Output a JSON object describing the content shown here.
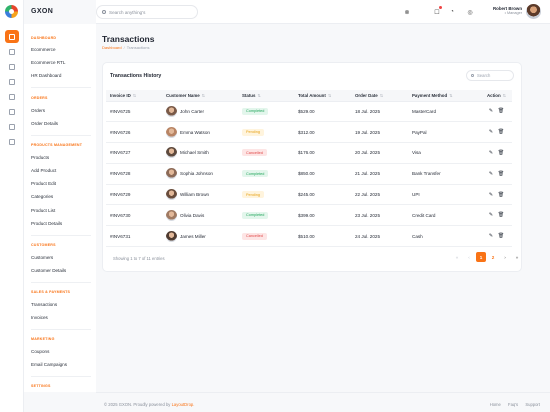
{
  "app": {
    "brand": "GXON"
  },
  "header": {
    "search_placeholder": "Search anything's",
    "user_name": "Robert Brown",
    "user_role": "Manager"
  },
  "sidebar": {
    "sections": [
      {
        "title": "Dashboard",
        "items": [
          "Ecommerce",
          "Ecommerce RTL",
          "HR Dashboard"
        ]
      },
      {
        "title": "Orders",
        "items": [
          "Orders",
          "Order Details"
        ]
      },
      {
        "title": "Products Management",
        "items": [
          "Products",
          "Add Product",
          "Product Edit",
          "Categories",
          "Product List",
          "Product Details"
        ]
      },
      {
        "title": "Customers",
        "items": [
          "Customers",
          "Customer Details"
        ]
      },
      {
        "title": "Sales & Payments",
        "items": [
          "Transactions",
          "Invoices"
        ]
      },
      {
        "title": "Marketing",
        "items": [
          "Coupons",
          "Email Campaigns"
        ]
      },
      {
        "title": "Settings",
        "items": []
      }
    ]
  },
  "main": {
    "title": "Transactions",
    "breadcrumb": {
      "parent": "Dashboard",
      "current": "Transactions"
    },
    "card_title": "Transactions History",
    "table_search_placeholder": "Search",
    "columns": [
      "Invoice ID",
      "Customer Name",
      "Status",
      "Total Amount",
      "Order Date",
      "Payment Method",
      "Action"
    ],
    "rows": [
      {
        "id": "#INV6725",
        "name": "John Carter",
        "status": "Completed",
        "amount": "$529.00",
        "date": "18 Jul. 2025",
        "method": "MasterCard",
        "avatar_color": "#7a5a48"
      },
      {
        "id": "#INV6726",
        "name": "Emma Watson",
        "status": "Pending",
        "amount": "$312.00",
        "date": "19 Jul. 2025",
        "method": "PayPal",
        "avatar_color": "#b88464"
      },
      {
        "id": "#INV6727",
        "name": "Michael Smith",
        "status": "Cancelled",
        "amount": "$176.00",
        "date": "20 Jul. 2025",
        "method": "Visa",
        "avatar_color": "#5e4a3e"
      },
      {
        "id": "#INV6728",
        "name": "Sophia Johnson",
        "status": "Completed",
        "amount": "$850.00",
        "date": "21 Jul. 2025",
        "method": "Bank Transfer",
        "avatar_color": "#8c6a57"
      },
      {
        "id": "#INV6729",
        "name": "William Brown",
        "status": "Pending",
        "amount": "$245.00",
        "date": "22 Jul. 2025",
        "method": "UPI",
        "avatar_color": "#6a4d3c"
      },
      {
        "id": "#INV6730",
        "name": "Olivia Davis",
        "status": "Completed",
        "amount": "$399.00",
        "date": "23 Jul. 2025",
        "method": "Credit Card",
        "avatar_color": "#a07a62"
      },
      {
        "id": "#INV6731",
        "name": "James Miller",
        "status": "Cancelled",
        "amount": "$510.00",
        "date": "24 Jul. 2025",
        "method": "Cash",
        "avatar_color": "#4f3b30"
      }
    ],
    "showing_text": "Showing 1 to 7 of 11 entries",
    "pagination": {
      "pages": [
        "1",
        "2"
      ],
      "active": "1"
    }
  },
  "footer": {
    "copyright": "© 2025 GXON. Proudly powered by",
    "powered_by": "LayoutDrop.",
    "links": [
      "Home",
      "Faq's",
      "Support"
    ]
  },
  "colors": {
    "accent": "#f97316",
    "completed": "#22a55b",
    "pending": "#e6a117",
    "cancelled": "#e04848"
  }
}
